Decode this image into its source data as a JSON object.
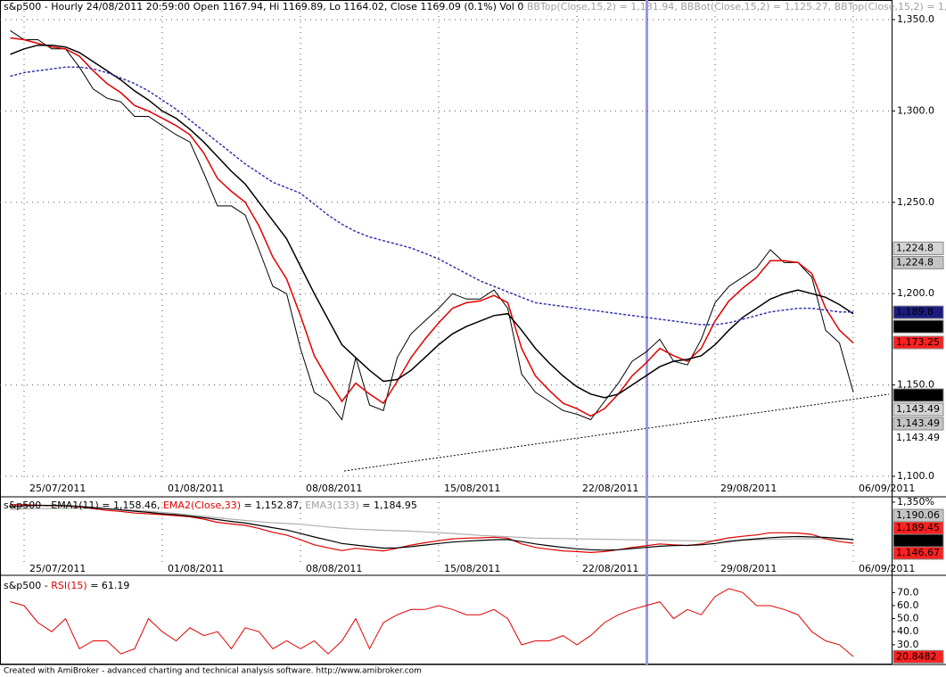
{
  "header": {
    "title_parts": [
      {
        "text": "s&p500 - Hourly 24/08/2011 20:59:00 Open 1167.94, Hi 1169.89, Lo 1164.02, Close 1169.09 (0.1%) Vol 0 ",
        "color": "#000000"
      },
      {
        "text": "BBTop(Close,15,2) = 1,181.94, BBBot(Close,15,2) = 1,125.27, BBTop(Close,15,2) = 1,1",
        "color": "#a0a0a0"
      }
    ]
  },
  "chart_data": [
    {
      "type": "line",
      "categories": [
        null,
        "25/07/2011",
        null,
        null,
        null,
        null,
        null,
        null,
        null,
        null,
        null,
        "01/08/2011",
        null,
        null,
        null,
        null,
        null,
        null,
        null,
        null,
        null,
        "08/08/2011",
        null,
        null,
        null,
        null,
        null,
        null,
        null,
        null,
        null,
        "15/08/2011",
        null,
        null,
        null,
        null,
        null,
        null,
        null,
        null,
        null,
        "22/08/2011",
        null,
        null,
        null,
        null,
        null,
        null,
        null,
        null,
        null,
        "29/08/2011",
        null,
        null,
        null,
        null,
        null,
        null,
        null,
        null,
        null,
        "06/09/2011"
      ],
      "series": [
        {
          "color": "#000000",
          "values": [
            1344,
            1339,
            1339,
            1334,
            1334,
            1324,
            1312,
            1307,
            1305,
            1297,
            1297,
            1292,
            1287,
            1283,
            1266,
            1248,
            1248,
            1243,
            1224,
            1204,
            1200,
            1170,
            1146,
            1141,
            1131,
            1165,
            1139,
            1136,
            1165,
            1178,
            1185,
            1192,
            1200,
            1197,
            1197,
            1202,
            1192,
            1156,
            1146,
            1141,
            1136,
            1134,
            1131,
            1141,
            1151,
            1163,
            1168,
            1175,
            1163,
            1161,
            1175,
            1195,
            1204,
            1209,
            1214,
            1224,
            1217,
            1217,
            1209,
            1180,
            1173,
            1146
          ]
        },
        {
          "color": "#e00000",
          "values": [
            1340,
            1339,
            1337,
            1335,
            1334,
            1330,
            1322,
            1315,
            1310,
            1303,
            1300,
            1296,
            1292,
            1287,
            1277,
            1263,
            1256,
            1250,
            1237,
            1220,
            1208,
            1188,
            1166,
            1153,
            1141,
            1151,
            1145,
            1140,
            1152,
            1165,
            1175,
            1184,
            1192,
            1195,
            1196,
            1199,
            1195,
            1170,
            1155,
            1147,
            1140,
            1137,
            1133,
            1137,
            1145,
            1155,
            1162,
            1170,
            1166,
            1163,
            1170,
            1185,
            1196,
            1203,
            1209,
            1218,
            1218,
            1217,
            1211,
            1192,
            1180,
            1173
          ]
        },
        {
          "color": "#000000",
          "values": [
            1331,
            1334,
            1336,
            1336,
            1335,
            1332,
            1327,
            1322,
            1317,
            1311,
            1306,
            1300,
            1296,
            1290,
            1283,
            1275,
            1267,
            1260,
            1250,
            1240,
            1230,
            1215,
            1200,
            1186,
            1172,
            1165,
            1158,
            1152,
            1153,
            1158,
            1165,
            1172,
            1178,
            1182,
            1185,
            1188,
            1189,
            1180,
            1170,
            1162,
            1155,
            1149,
            1145,
            1143,
            1145,
            1150,
            1155,
            1160,
            1163,
            1164,
            1166,
            1172,
            1180,
            1187,
            1192,
            1197,
            1200,
            1202,
            1200,
            1198,
            1194,
            1189
          ]
        },
        {
          "color": "#3333aa",
          "values": [
            1319,
            1321,
            1322,
            1323,
            1324,
            1324,
            1323,
            1321,
            1318,
            1315,
            1311,
            1306,
            1301,
            1295,
            1289,
            1283,
            1277,
            1271,
            1266,
            1261,
            1258,
            1255,
            1249,
            1243,
            1238,
            1234,
            1231,
            1229,
            1227,
            1225,
            1222,
            1219,
            1215,
            1211,
            1207,
            1204,
            1201,
            1198,
            1195,
            1194,
            1193,
            1192,
            1191,
            1190,
            1189,
            1188,
            1187,
            1186,
            1185,
            1184,
            1183,
            1183,
            1184,
            1186,
            1188,
            1190,
            1191,
            1192,
            1192,
            1191,
            1190,
            1190
          ]
        }
      ],
      "ylim": [
        1100,
        1350
      ],
      "yticks": [
        {
          "value": 1100,
          "label": "1,100.0"
        },
        {
          "value": 1150,
          "label": "1,150.0"
        },
        {
          "value": 1200,
          "label": "1,200.0"
        },
        {
          "value": 1250,
          "label": "1,250.0"
        },
        {
          "value": 1300,
          "label": "1,300.0"
        },
        {
          "value": 1350,
          "label": "1,350.0"
        }
      ],
      "grid": true,
      "right_labels": [
        {
          "value": 1224.8,
          "label": "1,224.8",
          "color": "#d4d4d4"
        },
        {
          "value": 1224.8,
          "label": "1,224.8",
          "color": "#c4c4c4"
        },
        {
          "value": 1189.8,
          "label": "1,189.8",
          "color": "#1c1c80"
        },
        {
          "value": 1189.45,
          "label": "1,189.45",
          "color": "#000000"
        },
        {
          "value": 1173.25,
          "label": "1,173.25",
          "color": "#ff2020"
        },
        {
          "value": 1144.44,
          "label": "1,144.44",
          "color": "#000000"
        },
        {
          "value": 1143.49,
          "label": "1,143.49",
          "color": "#d4d4d4"
        },
        {
          "value": 1143.49,
          "label": "1,143.49",
          "color": "#c4c4c4"
        },
        {
          "value": 1143.49,
          "label": "1,143.49",
          "color": "#ffffff"
        }
      ]
    },
    {
      "type": "line",
      "title_parts": [
        {
          "text": "s&p500 - EMA1(11) = 1,158.46, ",
          "color": "#000000"
        },
        {
          "text": "EMA2(Close,33)",
          "color": "#e00000"
        },
        {
          "text": " = 1,152.87, ",
          "color": "#000000"
        },
        {
          "text": "EMA3(133)",
          "color": "#a0a0a0"
        },
        {
          "text": " = 1,184.95",
          "color": "#000000"
        }
      ],
      "colors": [
        "#e00000",
        "#000000",
        "#b0b0b0"
      ],
      "ylim": [
        1100,
        1350
      ],
      "yticks": [
        {
          "value": 1350,
          "label": "1,350%"
        }
      ],
      "right_labels": [
        {
          "value": 1190.06,
          "label": "1,190.06",
          "color": "#c4c4c4"
        },
        {
          "value": 1189.45,
          "label": "1,189.45",
          "color": "#ff2020"
        },
        {
          "value": 1175.22,
          "label": "1,175.22",
          "color": "#000000"
        },
        {
          "value": 1146.67,
          "label": "1,146.67",
          "color": "#ff2020"
        }
      ]
    },
    {
      "type": "line",
      "title_parts": [
        {
          "text": "s&p500 - ",
          "color": "#000000"
        },
        {
          "text": "RSI(15)",
          "color": "#e00000"
        },
        {
          "text": " = 61.19",
          "color": "#000000"
        }
      ],
      "color": "#e00000",
      "values": [
        63,
        60,
        47,
        40,
        50,
        27,
        33,
        33,
        23,
        27,
        50,
        40,
        33,
        43,
        37,
        40,
        27,
        43,
        40,
        27,
        33,
        27,
        33,
        23,
        33,
        50,
        27,
        47,
        53,
        57,
        57,
        60,
        57,
        53,
        53,
        57,
        50,
        30,
        33,
        33,
        37,
        30,
        37,
        47,
        53,
        57,
        60,
        63,
        50,
        57,
        53,
        67,
        73,
        70,
        60,
        60,
        57,
        53,
        40,
        33,
        30,
        21
      ],
      "ylim": [
        20,
        75
      ],
      "yticks": [
        {
          "value": 30,
          "label": "30.0"
        },
        {
          "value": 40,
          "label": "40.0"
        },
        {
          "value": 50,
          "label": "50.0"
        },
        {
          "value": 60,
          "label": "60.0"
        },
        {
          "value": 70,
          "label": "70.0"
        }
      ],
      "right_labels": [
        {
          "value": 20.8482,
          "label": "20.8482",
          "color": "#ff2020"
        }
      ]
    }
  ],
  "footer": "Created with AmiBroker - advanced charting and technical analysis software. http://www.amibroker.com"
}
